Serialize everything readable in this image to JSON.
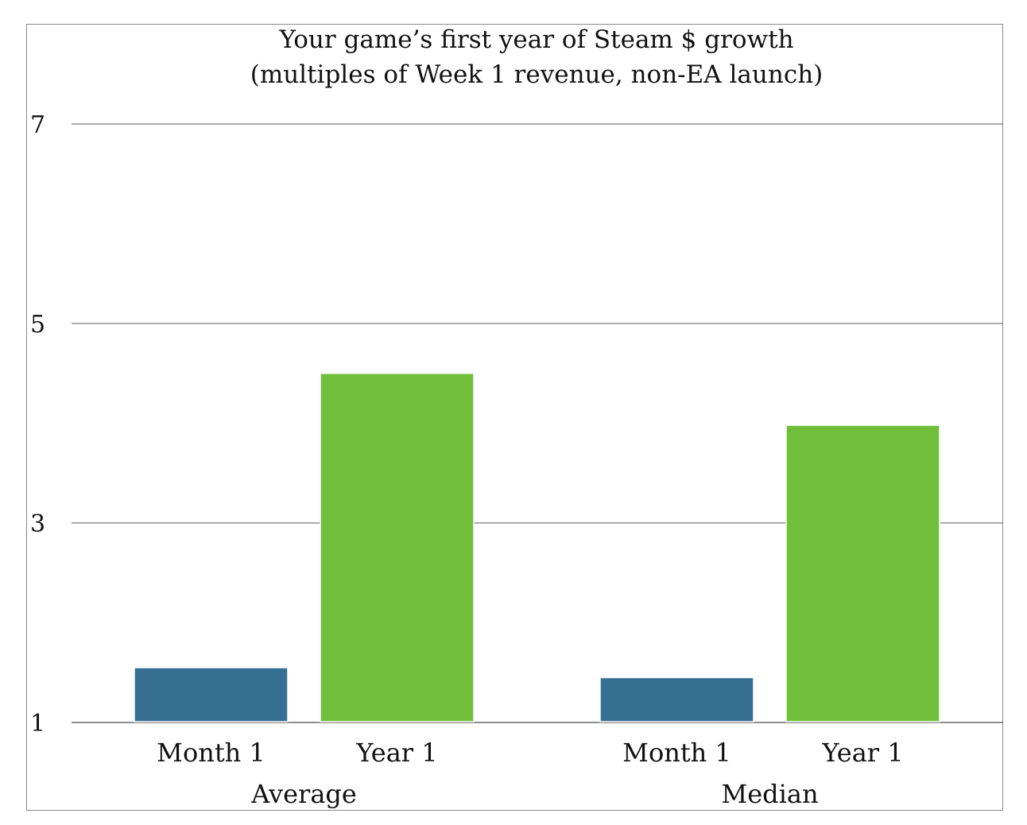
{
  "chart_data": {
    "type": "bar",
    "title": "Your game’s first year of Steam $ growth",
    "subtitle": "(multiples of Week 1 revenue, non-EA launch)",
    "xlabel": "",
    "ylabel": "",
    "ylim": [
      1,
      7
    ],
    "yticks": [
      "1",
      "3",
      "5",
      "7"
    ],
    "grid": true,
    "groups": [
      "Average",
      "Median"
    ],
    "categories": [
      "Month 1",
      "Year 1"
    ],
    "series": [
      {
        "values": [
          1.55,
          1.45
        ],
        "color": "#356f91"
      },
      {
        "values": [
          4.5,
          3.98
        ],
        "color": "#6fbf3a"
      }
    ]
  }
}
